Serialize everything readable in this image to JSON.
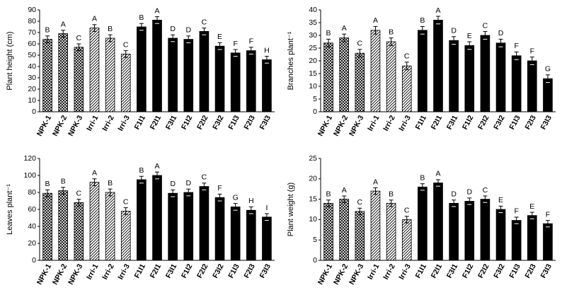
{
  "chart_data": [
    {
      "type": "bar",
      "y_label": "Plant height (cm)",
      "categories": [
        "NPK-1",
        "NPK-2",
        "NPK-3",
        "Irri-1",
        "Irri-2",
        "Irri-3",
        "F1I1",
        "F2I1",
        "F3I1",
        "F1I2",
        "F2I2",
        "F3I2",
        "F1I3",
        "F2I3",
        "F3I3"
      ],
      "values": [
        64,
        69,
        57,
        74,
        65,
        51,
        75,
        81,
        65,
        64,
        71,
        58,
        52,
        54,
        46
      ],
      "errors": [
        3,
        3,
        3,
        3,
        3,
        3,
        3,
        3,
        3,
        3,
        3,
        3,
        3,
        3,
        3
      ],
      "annotations": [
        "B",
        "A",
        "C",
        "A",
        "B",
        "C",
        "B",
        "A",
        "D",
        "D",
        "C",
        "E",
        "F",
        "F",
        "H"
      ],
      "patterns": [
        "crosshatch",
        "crosshatch",
        "crosshatch",
        "diagonal",
        "diagonal",
        "diagonal",
        "solid",
        "solid",
        "solid",
        "solid",
        "solid",
        "solid",
        "solid",
        "solid",
        "solid"
      ],
      "ylim": [
        0,
        90
      ],
      "yticks": [
        0,
        10,
        20,
        30,
        40,
        50,
        60,
        70,
        80,
        90
      ]
    },
    {
      "type": "bar",
      "y_label": "Branches plant⁻¹",
      "categories": [
        "NPK-1",
        "NPK-2",
        "NPK-3",
        "Irri-1",
        "Irri-2",
        "Irri-3",
        "F1I1",
        "F2I1",
        "F3I1",
        "F1I2",
        "F2I2",
        "F3I2",
        "F1I3",
        "F2I3",
        "F3I3"
      ],
      "values": [
        27,
        29,
        23,
        32,
        27.5,
        18,
        32,
        36,
        28,
        26,
        30,
        27,
        22,
        20,
        13
      ],
      "errors": [
        1.5,
        1.5,
        1.5,
        1.5,
        1.5,
        1.5,
        1.5,
        1.5,
        1.5,
        1.5,
        1.5,
        1.5,
        1.5,
        1.5,
        1.5
      ],
      "annotations": [
        "B",
        "A",
        "C",
        "A",
        "B",
        "C",
        "B",
        "A",
        "D",
        "E",
        "C",
        "D",
        "F",
        "F",
        "G"
      ],
      "patterns": [
        "crosshatch",
        "crosshatch",
        "crosshatch",
        "diagonal",
        "diagonal",
        "diagonal",
        "solid",
        "solid",
        "solid",
        "solid",
        "solid",
        "solid",
        "solid",
        "solid",
        "solid"
      ],
      "ylim": [
        0,
        40
      ],
      "yticks": [
        0,
        5,
        10,
        15,
        20,
        25,
        30,
        35,
        40
      ]
    },
    {
      "type": "bar",
      "y_label": "Leaves plant⁻¹",
      "categories": [
        "NPK-1",
        "NPK-2",
        "NPK-3",
        "Irri-1",
        "Irri-2",
        "Irri-3",
        "F1I1",
        "F2I1",
        "F3I1",
        "F1I2",
        "F2I2",
        "F3I2",
        "F1I3",
        "F2I3",
        "F3I3"
      ],
      "values": [
        79,
        82,
        68,
        92,
        80,
        58,
        95,
        100,
        79,
        80,
        87,
        74,
        63,
        59,
        51
      ],
      "errors": [
        4,
        4,
        4,
        4,
        4,
        4,
        4,
        4,
        4,
        4,
        4,
        4,
        4,
        4,
        4
      ],
      "annotations": [
        "B",
        "B",
        "C",
        "A",
        "B",
        "C",
        "B",
        "A",
        "D",
        "D",
        "C",
        "F",
        "G",
        "H",
        "I"
      ],
      "patterns": [
        "crosshatch",
        "crosshatch",
        "crosshatch",
        "diagonal",
        "diagonal",
        "diagonal",
        "solid",
        "solid",
        "solid",
        "solid",
        "solid",
        "solid",
        "solid",
        "solid",
        "solid"
      ],
      "ylim": [
        0,
        120
      ],
      "yticks": [
        0,
        20,
        40,
        60,
        80,
        100,
        120
      ]
    },
    {
      "type": "bar",
      "y_label": "Plant weight (g)",
      "categories": [
        "NPK-1",
        "NPK-2",
        "NPK-3",
        "Irri-1",
        "Irri-2",
        "Irri-3",
        "F1I1",
        "F2I1",
        "F3I1",
        "F1I2",
        "F2I2",
        "F3I2",
        "F1I3",
        "F2I3",
        "F3I3"
      ],
      "values": [
        14,
        15,
        12,
        17,
        14,
        10,
        18,
        19,
        14,
        14.5,
        15,
        12.5,
        9.8,
        11,
        9
      ],
      "errors": [
        0.8,
        0.8,
        0.8,
        0.8,
        0.8,
        0.8,
        0.8,
        0.8,
        0.8,
        0.8,
        0.8,
        0.8,
        0.8,
        0.8,
        0.8
      ],
      "annotations": [
        "B",
        "A",
        "C",
        "A",
        "B",
        "C",
        "B",
        "A",
        "D",
        "D",
        "C",
        "E",
        "F",
        "E",
        "F"
      ],
      "patterns": [
        "crosshatch",
        "crosshatch",
        "crosshatch",
        "diagonal",
        "diagonal",
        "diagonal",
        "solid",
        "solid",
        "solid",
        "solid",
        "solid",
        "solid",
        "solid",
        "solid",
        "solid"
      ],
      "ylim": [
        0,
        25
      ],
      "yticks": [
        0,
        5,
        10,
        15,
        20,
        25
      ]
    }
  ]
}
